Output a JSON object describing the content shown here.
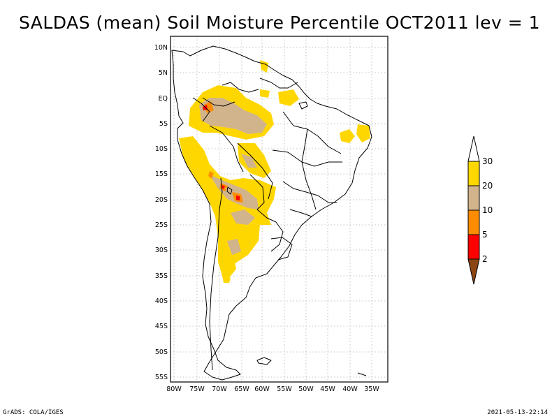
{
  "title": "SALDAS (mean) Soil Moisture Percentile OCT2011 lev = 1",
  "lat_ticks": [
    "10N",
    "5N",
    "EQ",
    "5S",
    "10S",
    "15S",
    "20S",
    "25S",
    "30S",
    "35S",
    "40S",
    "45S",
    "50S",
    "55S"
  ],
  "lon_ticks": [
    "80W",
    "75W",
    "70W",
    "65W",
    "60W",
    "55W",
    "50W",
    "45W",
    "40W",
    "35W"
  ],
  "colorbar": {
    "labels": [
      "30",
      "20",
      "10",
      "5",
      "2"
    ],
    "colors": {
      "above30": "#ffffff",
      "c20_30": "#ffd700",
      "c10_20": "#d2b48c",
      "c5_10": "#ff8c00",
      "c2_5": "#ff0000",
      "below2": "#8b4513"
    }
  },
  "footer_left": "GrADS: COLA/IGES",
  "footer_right": "2021-05-13-22:14"
}
